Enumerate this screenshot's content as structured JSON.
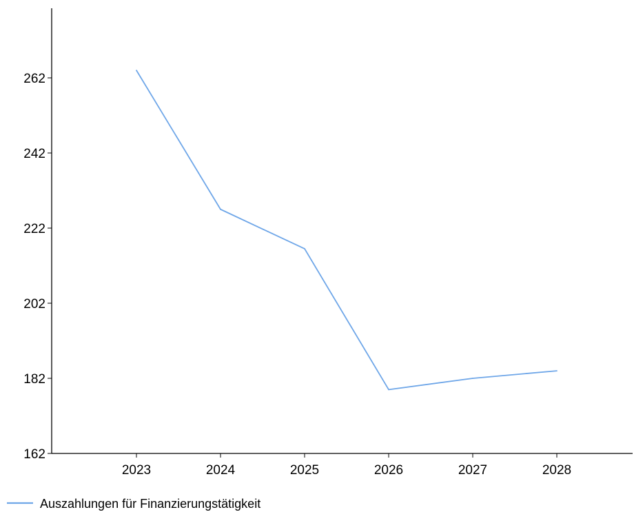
{
  "chart_data": {
    "type": "line",
    "title": "",
    "xlabel": "",
    "ylabel": "",
    "categories": [
      "2023",
      "2024",
      "2025",
      "2026",
      "2027",
      "2028"
    ],
    "series": [
      {
        "name": "Auszahlungen für Finanzierungstätigkeit",
        "color": "#6ea6e8",
        "values": [
          264,
          227,
          216.5,
          179,
          182,
          184
        ]
      }
    ],
    "yticks": [
      162,
      182,
      202,
      222,
      242,
      262
    ],
    "ylim": [
      162,
      281
    ],
    "grid": false,
    "legend_position": "bottom-left"
  }
}
